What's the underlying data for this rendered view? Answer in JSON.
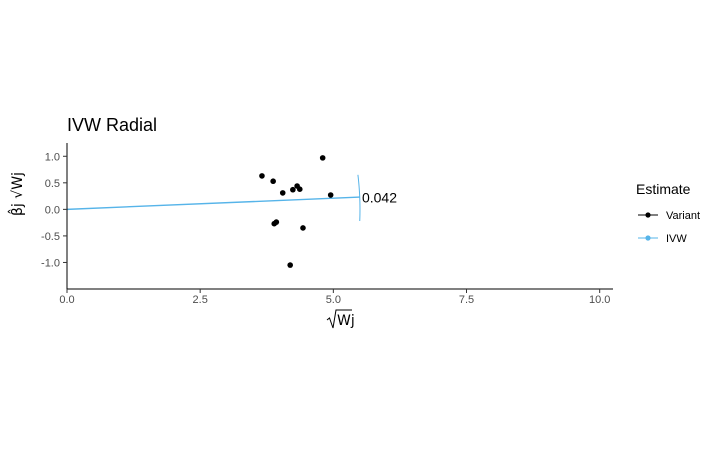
{
  "chart_data": {
    "type": "scatter",
    "title": "IVW Radial",
    "xlabel": "Wj",
    "ylabel": "β̂j √Wj",
    "xlim": [
      0,
      10.25
    ],
    "ylim": [
      -1.5,
      1.25
    ],
    "x_ticks": [
      0,
      2.5,
      5,
      7.5,
      10
    ],
    "x_tick_labels": [
      "0.0",
      "2.5",
      "5.0",
      "7.5",
      "10.0"
    ],
    "y_ticks": [
      -1,
      -0.5,
      0,
      0.5,
      1
    ],
    "y_tick_labels": [
      "-1.0",
      "-0.5",
      "0.0",
      "0.5",
      "1.0"
    ],
    "grid": false,
    "legend": {
      "title": "Estimate",
      "position": "right",
      "entries": [
        {
          "label": "Variant",
          "color": "#000000"
        },
        {
          "label": "IVW",
          "color": "#56B4E9"
        }
      ]
    },
    "series": [
      {
        "name": "Variant",
        "color": "#000000",
        "points": [
          {
            "x": 3.66,
            "y": 0.63
          },
          {
            "x": 3.87,
            "y": 0.53
          },
          {
            "x": 4.05,
            "y": 0.31
          },
          {
            "x": 4.24,
            "y": 0.37
          },
          {
            "x": 4.32,
            "y": 0.44
          },
          {
            "x": 4.37,
            "y": 0.38
          },
          {
            "x": 4.8,
            "y": 0.97
          },
          {
            "x": 4.95,
            "y": 0.27
          },
          {
            "x": 3.89,
            "y": -0.27
          },
          {
            "x": 3.93,
            "y": -0.24
          },
          {
            "x": 4.43,
            "y": -0.35
          },
          {
            "x": 4.19,
            "y": -1.05
          }
        ]
      },
      {
        "name": "IVW",
        "color": "#56B4E9",
        "type": "line",
        "slope": 0.042,
        "x": [
          0,
          5.5
        ]
      }
    ],
    "arc": {
      "color": "#56B4E9",
      "radius": 5.5,
      "y_range": [
        -0.22,
        0.65
      ]
    },
    "annotations": [
      {
        "text": "0.042",
        "x": 5.5,
        "y": 0.22
      }
    ]
  }
}
